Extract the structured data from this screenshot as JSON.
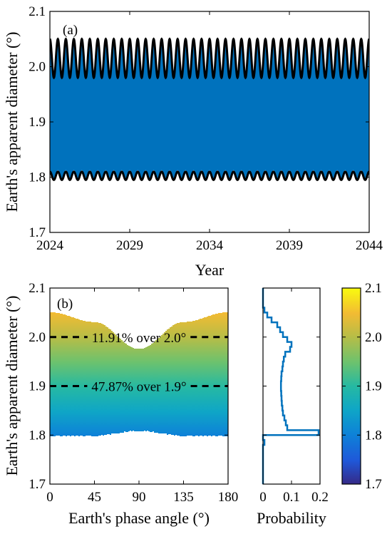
{
  "chart_data": [
    {
      "type": "line",
      "panel_label": "(a)",
      "xlabel": "Year",
      "ylabel": "Earth's apparent diameter (°)",
      "xlim": [
        2024,
        2044
      ],
      "ylim": [
        1.7,
        2.1
      ],
      "xticks": [
        "2024",
        "2029",
        "2034",
        "2039",
        "2044"
      ],
      "yticks": [
        "1.7",
        "1.8",
        "1.9",
        "2.0",
        "2.1"
      ],
      "fill_band": {
        "color": "#0072BD",
        "lower": 1.8,
        "upper": 2.05
      },
      "envelope": {
        "color": "#000000",
        "cycles": 40,
        "upper_max": 2.05,
        "upper_min": 1.98,
        "lower_max": 1.81,
        "lower_min": 1.795
      },
      "grid": false
    },
    {
      "type": "scatter",
      "panel_label": "(b)",
      "xlabel": "Earth's phase angle (°)",
      "ylabel": "Earth's apparent diameter (°)",
      "xlim": [
        0,
        180
      ],
      "ylim": [
        1.7,
        2.1
      ],
      "xticks": [
        "0",
        "45",
        "90",
        "135",
        "180"
      ],
      "yticks": [
        "1.7",
        "1.8",
        "1.9",
        "2.0",
        "2.1"
      ],
      "colormap": "parula",
      "upper_envelope": [
        [
          0,
          2.05
        ],
        [
          45,
          2.03
        ],
        [
          90,
          1.975
        ],
        [
          135,
          2.03
        ],
        [
          180,
          2.05
        ]
      ],
      "lower_envelope": [
        [
          0,
          1.8
        ],
        [
          45,
          1.8
        ],
        [
          90,
          1.81
        ],
        [
          135,
          1.8
        ],
        [
          180,
          1.8
        ]
      ],
      "thresholds": [
        {
          "y": 2.0,
          "label": "11.91% over 2.0°"
        },
        {
          "y": 1.9,
          "label": "47.87% over 1.9°"
        }
      ]
    },
    {
      "type": "histogram",
      "xlabel": "Probability",
      "xlim": [
        0,
        0.2
      ],
      "ylim": [
        1.7,
        2.1
      ],
      "xticks": [
        "0",
        "0.1",
        "0.2"
      ],
      "color": "#0072BD",
      "bins": [
        1.78,
        1.79,
        1.8,
        1.81,
        1.82,
        1.83,
        1.84,
        1.85,
        1.86,
        1.87,
        1.88,
        1.89,
        1.9,
        1.91,
        1.92,
        1.93,
        1.94,
        1.95,
        1.96,
        1.97,
        1.98,
        1.99,
        2.0,
        2.01,
        2.02,
        2.03,
        2.04,
        2.05,
        2.06,
        2.07,
        2.08
      ],
      "probabilities": [
        0.005,
        0.0,
        0.195,
        0.085,
        0.08,
        0.075,
        0.07,
        0.068,
        0.066,
        0.065,
        0.064,
        0.063,
        0.063,
        0.064,
        0.065,
        0.068,
        0.07,
        0.073,
        0.078,
        0.095,
        0.1,
        0.085,
        0.07,
        0.06,
        0.05,
        0.03,
        0.015,
        0.005,
        0.0,
        0.0
      ]
    },
    {
      "type": "colorbar",
      "colormap": "parula",
      "ylim": [
        1.7,
        2.1
      ],
      "yticks": [
        "1.7",
        "1.8",
        "1.9",
        "2.0",
        "2.1"
      ]
    }
  ]
}
